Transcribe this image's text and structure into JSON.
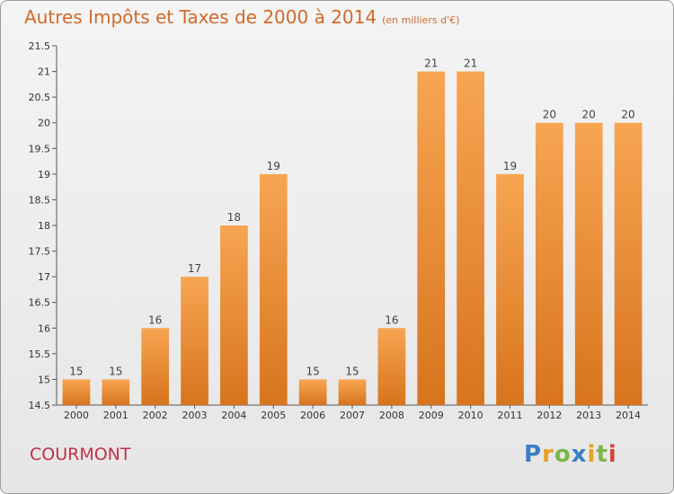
{
  "title": "Autres Impôts et Taxes de 2000 à 2014",
  "subtitle": "(en milliers d'€)",
  "commune": "COURMONT",
  "logo": {
    "text": "Proxiti",
    "letters": [
      {
        "char": "P",
        "color": "#3a7fc4"
      },
      {
        "char": "r",
        "color": "#e8a020"
      },
      {
        "char": "o",
        "color": "#7ab648"
      },
      {
        "char": "x",
        "color": "#3a7fc4"
      },
      {
        "char": "i",
        "color": "#e8a020"
      },
      {
        "char": "t",
        "color": "#7ab648"
      },
      {
        "char": "i",
        "color": "#d0453a"
      }
    ]
  },
  "chart_data": {
    "type": "bar",
    "categories": [
      "2000",
      "2001",
      "2002",
      "2003",
      "2004",
      "2005",
      "2006",
      "2007",
      "2008",
      "2009",
      "2010",
      "2011",
      "2012",
      "2013",
      "2014"
    ],
    "values": [
      15,
      15,
      16,
      17,
      18,
      19,
      15,
      15,
      16,
      21,
      21,
      19,
      20,
      20,
      20
    ],
    "ylim": [
      14.5,
      21.5
    ],
    "yticks": [
      "14.5",
      "15",
      "15.5",
      "16",
      "16.5",
      "17",
      "17.5",
      "18",
      "18.5",
      "19",
      "19.5",
      "20",
      "20.5",
      "21",
      "21.5"
    ],
    "grid": false,
    "bar_color": "#f0922e"
  }
}
